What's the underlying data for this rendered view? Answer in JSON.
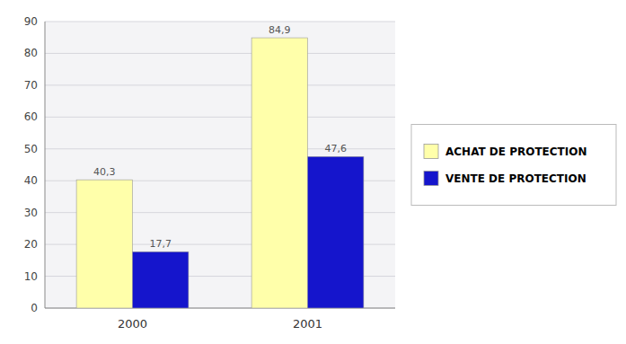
{
  "chart_data": {
    "type": "bar",
    "categories": [
      "2000",
      "2001"
    ],
    "series": [
      {
        "name": "ACHAT DE PROTECTION",
        "color": "#FFFFAA",
        "values": [
          40.3,
          84.9
        ],
        "value_labels": [
          "40,3",
          "84,9"
        ]
      },
      {
        "name": "VENTE DE PROTECTION",
        "color": "#1515CC",
        "values": [
          17.7,
          47.6
        ],
        "value_labels": [
          "17,7",
          "47,6"
        ]
      }
    ],
    "ylim": [
      0,
      90
    ],
    "yticks": [
      0,
      10,
      20,
      30,
      40,
      50,
      60,
      70,
      80,
      90
    ],
    "grid": true,
    "legend": "right",
    "data_labels": true
  }
}
